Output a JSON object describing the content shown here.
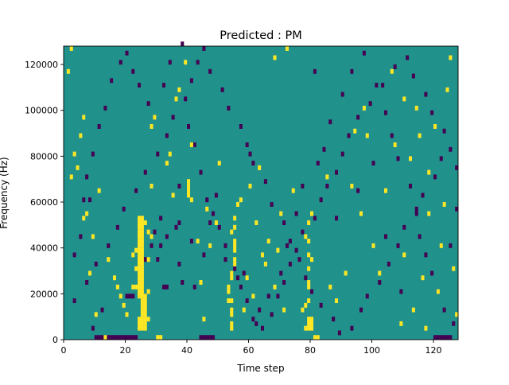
{
  "chart_data": {
    "type": "heatmap",
    "title": "Predicted : PM",
    "xlabel": "Time step",
    "ylabel": "Frequency (Hz)",
    "xlim": [
      0,
      128
    ],
    "ylim": [
      0,
      128000
    ],
    "x_ticks": [
      0,
      20,
      40,
      60,
      80,
      100,
      120
    ],
    "x_tick_labels": [
      "0",
      "20",
      "40",
      "60",
      "80",
      "100",
      "120"
    ],
    "y_ticks": [
      0,
      20000,
      40000,
      60000,
      80000,
      100000,
      120000
    ],
    "y_tick_labels": [
      "0",
      "20000",
      "40000",
      "60000",
      "80000",
      "100000",
      "120000"
    ],
    "n_time_steps": 128,
    "n_freq_bins": 64,
    "colormap": "viridis",
    "colors": {
      "background": "#21918c",
      "high": "#fde725",
      "low": "#440154"
    },
    "high_cells": [
      [
        24,
        2
      ],
      [
        25,
        2
      ],
      [
        26,
        2
      ],
      [
        24,
        3
      ],
      [
        25,
        3
      ],
      [
        26,
        3
      ],
      [
        24,
        4
      ],
      [
        25,
        4
      ],
      [
        26,
        4
      ],
      [
        25,
        5
      ],
      [
        26,
        5
      ],
      [
        25,
        6
      ],
      [
        26,
        6
      ],
      [
        25,
        7
      ],
      [
        26,
        7
      ],
      [
        25,
        8
      ],
      [
        26,
        8
      ],
      [
        24,
        9
      ],
      [
        25,
        9
      ],
      [
        26,
        9
      ],
      [
        24,
        10
      ],
      [
        25,
        10
      ],
      [
        24,
        11
      ],
      [
        25,
        11
      ],
      [
        24,
        12
      ],
      [
        25,
        12
      ],
      [
        24,
        13
      ],
      [
        25,
        13
      ],
      [
        24,
        14
      ],
      [
        25,
        14
      ],
      [
        24,
        15
      ],
      [
        25,
        15
      ],
      [
        24,
        16
      ],
      [
        25,
        16
      ],
      [
        24,
        17
      ],
      [
        25,
        17
      ],
      [
        24,
        18
      ],
      [
        25,
        18
      ],
      [
        24,
        19
      ],
      [
        25,
        19
      ],
      [
        24,
        20
      ],
      [
        25,
        20
      ],
      [
        24,
        21
      ],
      [
        25,
        21
      ],
      [
        24,
        22
      ],
      [
        25,
        22
      ],
      [
        24,
        23
      ],
      [
        25,
        23
      ],
      [
        24,
        24
      ],
      [
        25,
        24
      ],
      [
        24,
        25
      ],
      [
        25,
        25
      ],
      [
        24,
        26
      ],
      [
        25,
        26
      ],
      [
        23,
        11
      ],
      [
        23,
        15
      ],
      [
        23,
        19
      ],
      [
        27,
        4
      ],
      [
        27,
        10
      ],
      [
        27,
        17
      ],
      [
        27,
        23
      ],
      [
        22,
        18
      ],
      [
        28,
        22
      ],
      [
        26,
        25
      ],
      [
        22,
        11
      ],
      [
        78,
        2
      ],
      [
        79,
        2
      ],
      [
        80,
        2
      ],
      [
        79,
        3
      ],
      [
        80,
        3
      ],
      [
        79,
        4
      ],
      [
        80,
        4
      ],
      [
        78,
        7
      ],
      [
        79,
        8
      ],
      [
        79,
        11
      ],
      [
        79,
        12
      ],
      [
        79,
        15
      ],
      [
        79,
        18
      ],
      [
        79,
        21
      ],
      [
        78,
        22
      ],
      [
        80,
        17
      ],
      [
        79,
        25
      ],
      [
        80,
        27
      ],
      [
        81,
        0
      ],
      [
        82,
        0
      ],
      [
        77,
        6
      ],
      [
        54,
        2
      ],
      [
        54,
        3
      ],
      [
        54,
        5
      ],
      [
        54,
        6
      ],
      [
        54,
        8
      ],
      [
        53,
        10
      ],
      [
        53,
        11
      ],
      [
        54,
        13
      ],
      [
        54,
        14
      ],
      [
        55,
        16
      ],
      [
        55,
        17
      ],
      [
        55,
        19
      ],
      [
        55,
        20
      ],
      [
        55,
        21
      ],
      [
        54,
        23
      ],
      [
        55,
        24
      ],
      [
        55,
        26
      ],
      [
        56,
        29
      ],
      [
        53,
        8
      ],
      [
        40,
        31
      ],
      [
        40,
        32
      ],
      [
        40,
        33
      ],
      [
        41,
        30
      ],
      [
        40,
        34
      ],
      [
        30,
        0
      ],
      [
        31,
        0
      ],
      [
        13,
        0
      ],
      [
        45,
        4
      ],
      [
        44,
        12
      ],
      [
        2,
        63
      ],
      [
        35,
        31
      ],
      [
        7,
        27
      ],
      [
        6,
        26
      ],
      [
        49,
        25
      ],
      [
        14,
        17
      ],
      [
        16,
        13
      ],
      [
        17,
        11
      ],
      [
        18,
        9
      ],
      [
        20,
        5
      ],
      [
        28,
        33
      ],
      [
        33,
        38
      ],
      [
        36,
        52
      ],
      [
        37,
        54
      ],
      [
        39,
        60
      ],
      [
        41,
        42
      ],
      [
        60,
        33
      ],
      [
        62,
        25
      ],
      [
        64,
        18
      ],
      [
        68,
        11
      ],
      [
        71,
        6
      ],
      [
        72,
        63
      ],
      [
        86,
        11
      ],
      [
        91,
        14
      ],
      [
        93,
        33
      ],
      [
        96,
        27
      ],
      [
        100,
        20
      ],
      [
        104,
        32
      ],
      [
        107,
        42
      ],
      [
        110,
        18
      ],
      [
        112,
        39
      ],
      [
        115,
        44
      ],
      [
        116,
        13
      ],
      [
        118,
        27
      ],
      [
        121,
        10
      ],
      [
        122,
        20
      ],
      [
        123,
        29
      ],
      [
        124,
        54
      ],
      [
        125,
        61
      ],
      [
        127,
        5
      ],
      [
        97,
        50
      ],
      [
        98,
        44
      ],
      [
        106,
        58
      ],
      [
        110,
        52
      ],
      [
        68,
        61
      ],
      [
        63,
        37
      ],
      [
        50,
        38
      ],
      [
        46,
        28
      ],
      [
        43,
        21
      ],
      [
        28,
        46
      ],
      [
        10,
        5
      ],
      [
        9,
        22
      ],
      [
        8,
        14
      ],
      [
        4,
        37
      ],
      [
        2,
        35
      ],
      [
        1,
        58
      ],
      [
        3,
        40
      ],
      [
        5,
        44
      ],
      [
        6,
        48
      ],
      [
        11,
        32
      ],
      [
        19,
        7
      ],
      [
        29,
        48
      ],
      [
        34,
        40
      ],
      [
        47,
        20
      ],
      [
        57,
        30
      ],
      [
        59,
        13
      ],
      [
        66,
        21
      ],
      [
        70,
        27
      ],
      [
        74,
        32
      ],
      [
        85,
        35
      ],
      [
        88,
        8
      ],
      [
        94,
        45
      ],
      [
        102,
        14
      ],
      [
        114,
        50
      ],
      [
        118,
        36
      ],
      [
        120,
        46
      ],
      [
        126,
        15
      ],
      [
        109,
        3
      ],
      [
        113,
        6
      ],
      [
        117,
        2
      ],
      [
        58,
        6
      ],
      [
        61,
        9
      ],
      [
        65,
        16
      ],
      [
        69,
        19
      ]
    ],
    "low_cells": [
      [
        10,
        0
      ],
      [
        11,
        0
      ],
      [
        12,
        0
      ],
      [
        13,
        0
      ],
      [
        14,
        0
      ],
      [
        15,
        0
      ],
      [
        16,
        0
      ],
      [
        17,
        0
      ],
      [
        18,
        0
      ],
      [
        19,
        0
      ],
      [
        20,
        0
      ],
      [
        21,
        0
      ],
      [
        22,
        0
      ],
      [
        23,
        0
      ],
      [
        44,
        0
      ],
      [
        45,
        0
      ],
      [
        46,
        0
      ],
      [
        47,
        0
      ],
      [
        48,
        0
      ],
      [
        120,
        0
      ],
      [
        121,
        0
      ],
      [
        122,
        0
      ],
      [
        123,
        0
      ],
      [
        124,
        0
      ],
      [
        125,
        0
      ],
      [
        20,
        9
      ],
      [
        21,
        9
      ],
      [
        22,
        9
      ],
      [
        12,
        6
      ],
      [
        28,
        20
      ],
      [
        26,
        17
      ],
      [
        30,
        17
      ],
      [
        32,
        11
      ],
      [
        31,
        20
      ],
      [
        29,
        23
      ],
      [
        31,
        26
      ],
      [
        33,
        22
      ],
      [
        36,
        24
      ],
      [
        37,
        25
      ],
      [
        37,
        16
      ],
      [
        38,
        12
      ],
      [
        42,
        11
      ],
      [
        45,
        18
      ],
      [
        47,
        25
      ],
      [
        49,
        31
      ],
      [
        52,
        20
      ],
      [
        56,
        13
      ],
      [
        58,
        14
      ],
      [
        61,
        4
      ],
      [
        63,
        6
      ],
      [
        66,
        9
      ],
      [
        70,
        14
      ],
      [
        72,
        20
      ],
      [
        75,
        27
      ],
      [
        77,
        33
      ],
      [
        82,
        38
      ],
      [
        84,
        41
      ],
      [
        86,
        47
      ],
      [
        90,
        53
      ],
      [
        93,
        58
      ],
      [
        97,
        62
      ],
      [
        101,
        55
      ],
      [
        104,
        49
      ],
      [
        106,
        44
      ],
      [
        108,
        39
      ],
      [
        112,
        33
      ],
      [
        114,
        27
      ],
      [
        115,
        22
      ],
      [
        117,
        18
      ],
      [
        119,
        14
      ],
      [
        121,
        10
      ],
      [
        123,
        6
      ],
      [
        126,
        3
      ],
      [
        3,
        18
      ],
      [
        5,
        22
      ],
      [
        6,
        30
      ],
      [
        7,
        35
      ],
      [
        9,
        40
      ],
      [
        11,
        46
      ],
      [
        13,
        50
      ],
      [
        15,
        56
      ],
      [
        18,
        60
      ],
      [
        20,
        62
      ],
      [
        22,
        58
      ],
      [
        27,
        51
      ],
      [
        29,
        48
      ],
      [
        32,
        55
      ],
      [
        34,
        60
      ],
      [
        38,
        64
      ],
      [
        40,
        46
      ],
      [
        42,
        42
      ],
      [
        44,
        36
      ],
      [
        46,
        30
      ],
      [
        48,
        27
      ],
      [
        50,
        24
      ],
      [
        52,
        17
      ],
      [
        55,
        15
      ],
      [
        57,
        11
      ],
      [
        59,
        8
      ],
      [
        62,
        3
      ],
      [
        64,
        2
      ],
      [
        67,
        5
      ],
      [
        69,
        9
      ],
      [
        71,
        12
      ],
      [
        73,
        16
      ],
      [
        75,
        19
      ],
      [
        77,
        23
      ],
      [
        81,
        26
      ],
      [
        83,
        30
      ],
      [
        85,
        33
      ],
      [
        88,
        36
      ],
      [
        90,
        40
      ],
      [
        92,
        44
      ],
      [
        95,
        48
      ],
      [
        99,
        51
      ],
      [
        103,
        55
      ],
      [
        107,
        59
      ],
      [
        111,
        61
      ],
      [
        113,
        57
      ],
      [
        117,
        53
      ],
      [
        119,
        49
      ],
      [
        123,
        45
      ],
      [
        125,
        41
      ],
      [
        127,
        37
      ],
      [
        3,
        8
      ],
      [
        7,
        12
      ],
      [
        10,
        16
      ],
      [
        14,
        20
      ],
      [
        17,
        24
      ],
      [
        19,
        28
      ],
      [
        23,
        32
      ],
      [
        26,
        36
      ],
      [
        30,
        40
      ],
      [
        33,
        44
      ],
      [
        35,
        48
      ],
      [
        39,
        52
      ],
      [
        41,
        56
      ],
      [
        43,
        60
      ],
      [
        45,
        63
      ],
      [
        47,
        58
      ],
      [
        51,
        54
      ],
      [
        53,
        50
      ],
      [
        57,
        46
      ],
      [
        59,
        42
      ],
      [
        61,
        38
      ],
      [
        65,
        34
      ],
      [
        67,
        29
      ],
      [
        71,
        25
      ],
      [
        73,
        21
      ],
      [
        76,
        17
      ],
      [
        78,
        13
      ],
      [
        80,
        10
      ],
      [
        83,
        7
      ],
      [
        87,
        4
      ],
      [
        89,
        1
      ],
      [
        93,
        2
      ],
      [
        96,
        6
      ],
      [
        98,
        9
      ],
      [
        102,
        12
      ],
      [
        105,
        16
      ],
      [
        108,
        20
      ],
      [
        110,
        24
      ],
      [
        114,
        28
      ],
      [
        116,
        31
      ],
      [
        120,
        35
      ],
      [
        122,
        39
      ],
      [
        9,
        2
      ],
      [
        8,
        30
      ],
      [
        60,
        40
      ],
      [
        33,
        11
      ],
      [
        37,
        33
      ],
      [
        24,
        55
      ],
      [
        41,
        21
      ],
      [
        81,
        58
      ],
      [
        88,
        26
      ],
      [
        95,
        32
      ],
      [
        100,
        38
      ],
      [
        104,
        22
      ],
      [
        109,
        10
      ],
      [
        125,
        20
      ],
      [
        127,
        28
      ]
    ]
  }
}
